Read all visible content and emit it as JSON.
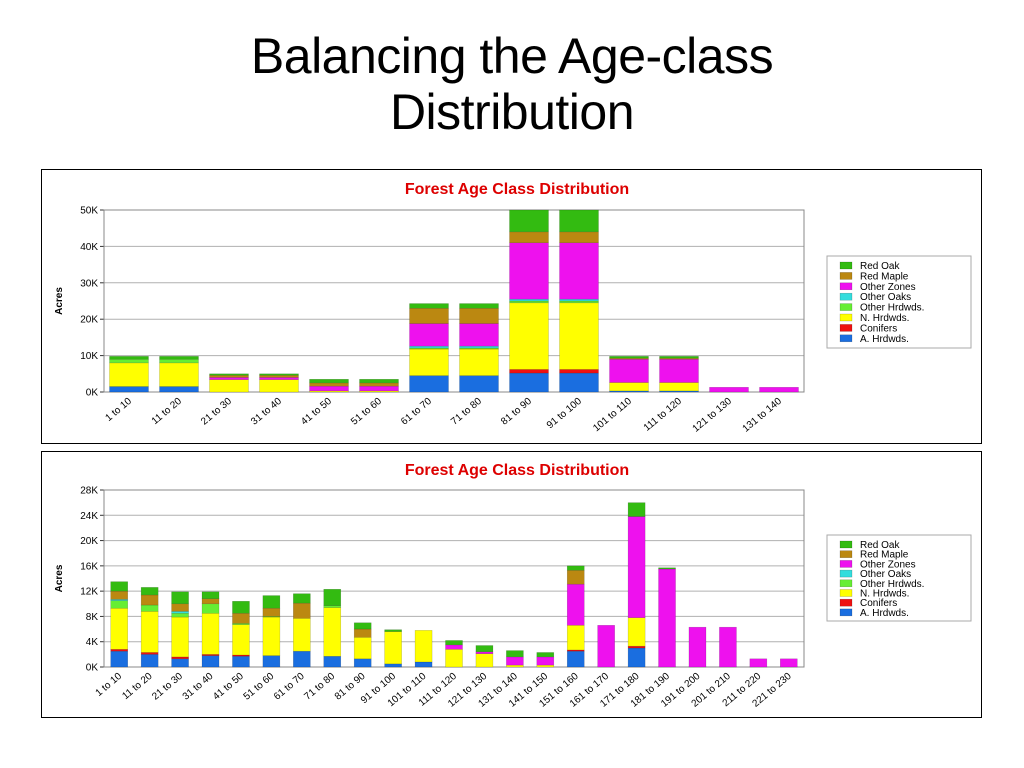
{
  "slide": {
    "title_line1": "Balancing the Age-class",
    "title_line2": "Distribution"
  },
  "colors": {
    "A. Hrdwds.": "#1a6ee0",
    "Conifers": "#ee1111",
    "N. Hrdwds.": "#ffff00",
    "Other Hrdwds.": "#66ee33",
    "Other Oaks": "#33dddd",
    "Other Zones": "#ee11ee",
    "Red Maple": "#bb8811",
    "Red Oak": "#33bb11",
    "title": "#dd0000"
  },
  "chart_data": [
    {
      "type": "bar",
      "stacked": true,
      "title": "Forest Age Class Distribution",
      "ylabel": "Acres",
      "ylim": [
        0,
        50000
      ],
      "yticks": [
        "0K",
        "10K",
        "20K",
        "30K",
        "40K",
        "50K"
      ],
      "grid": true,
      "legend_position": "right",
      "legend": [
        "Red Oak",
        "Red Maple",
        "Other Zones",
        "Other Oaks",
        "Other Hrdwds.",
        "N. Hrdwds.",
        "Conifers",
        "A. Hrdwds."
      ],
      "categories": [
        "1 to 10",
        "11 to 20",
        "21 to 30",
        "31 to 40",
        "41 to 50",
        "51 to 60",
        "61 to 70",
        "71 to 80",
        "81 to 90",
        "91 to 100",
        "101 to 110",
        "111 to 120",
        "121 to 130",
        "131 to 140"
      ],
      "series": [
        {
          "name": "A. Hrdwds.",
          "values": [
            1500,
            1500,
            0,
            0,
            0,
            0,
            4500,
            4500,
            5200,
            5200,
            300,
            300,
            0,
            0
          ]
        },
        {
          "name": "Conifers",
          "values": [
            0,
            0,
            0,
            0,
            0,
            0,
            0,
            0,
            1000,
            1000,
            0,
            0,
            0,
            0
          ]
        },
        {
          "name": "N. Hrdwds.",
          "values": [
            6500,
            6500,
            3400,
            3400,
            300,
            300,
            7300,
            7300,
            18300,
            18300,
            2300,
            2300,
            0,
            0
          ]
        },
        {
          "name": "Other Hrdwds.",
          "values": [
            1000,
            1000,
            0,
            0,
            0,
            0,
            300,
            300,
            500,
            500,
            0,
            0,
            0,
            0
          ]
        },
        {
          "name": "Other Oaks",
          "values": [
            0,
            0,
            0,
            0,
            0,
            0,
            500,
            500,
            500,
            500,
            0,
            0,
            0,
            0
          ]
        },
        {
          "name": "Other Zones",
          "values": [
            0,
            0,
            600,
            600,
            1300,
            1300,
            6200,
            6200,
            15500,
            15500,
            6400,
            6400,
            1300,
            1300
          ]
        },
        {
          "name": "Red Maple",
          "values": [
            0,
            0,
            600,
            600,
            900,
            900,
            4200,
            4200,
            3000,
            3000,
            300,
            300,
            0,
            0
          ]
        },
        {
          "name": "Red Oak",
          "values": [
            800,
            800,
            400,
            400,
            1000,
            1000,
            1300,
            1300,
            6000,
            6000,
            500,
            500,
            0,
            0
          ]
        }
      ]
    },
    {
      "type": "bar",
      "stacked": true,
      "title": "Forest Age Class Distribution",
      "ylabel": "Acres",
      "ylim": [
        0,
        28000
      ],
      "yticks": [
        "0K",
        "4K",
        "8K",
        "12K",
        "16K",
        "20K",
        "24K",
        "28K"
      ],
      "grid": true,
      "legend_position": "right",
      "legend": [
        "Red Oak",
        "Red Maple",
        "Other Zones",
        "Other Oaks",
        "Other Hrdwds.",
        "N. Hrdwds.",
        "Conifers",
        "A. Hrdwds."
      ],
      "categories": [
        "1 to 10",
        "11 to 20",
        "21 to 30",
        "31 to 40",
        "41 to 50",
        "51 to 60",
        "61 to 70",
        "71 to 80",
        "81 to 90",
        "91 to 100",
        "101 to 110",
        "111 to 120",
        "121 to 130",
        "131 to 140",
        "141 to 150",
        "151 to 160",
        "161 to 170",
        "171 to 180",
        "181 to 190",
        "191 to 200",
        "201 to 210",
        "211 to 220",
        "221 to 230"
      ],
      "series": [
        {
          "name": "A. Hrdwds.",
          "values": [
            2500,
            2000,
            1300,
            1800,
            1700,
            1800,
            2500,
            1700,
            1300,
            500,
            800,
            0,
            0,
            0,
            0,
            2500,
            0,
            3000,
            0,
            0,
            0,
            0,
            0
          ]
        },
        {
          "name": "Conifers",
          "values": [
            300,
            300,
            300,
            200,
            200,
            0,
            0,
            0,
            0,
            0,
            0,
            0,
            0,
            0,
            0,
            200,
            0,
            300,
            0,
            0,
            0,
            0,
            0
          ]
        },
        {
          "name": "N. Hrdwds.",
          "values": [
            6500,
            6500,
            6300,
            6500,
            4800,
            6100,
            5200,
            7700,
            3400,
            5100,
            5000,
            2800,
            2100,
            300,
            300,
            3900,
            0,
            4500,
            0,
            0,
            0,
            0,
            0
          ]
        },
        {
          "name": "Other Hrdwds.",
          "values": [
            1200,
            1000,
            600,
            1500,
            200,
            100,
            0,
            300,
            0,
            0,
            0,
            0,
            0,
            0,
            0,
            0,
            0,
            0,
            0,
            0,
            0,
            0,
            0
          ]
        },
        {
          "name": "Other Oaks",
          "values": [
            200,
            0,
            300,
            0,
            0,
            0,
            0,
            0,
            0,
            0,
            0,
            0,
            0,
            0,
            0,
            0,
            0,
            0,
            0,
            0,
            0,
            0,
            0
          ]
        },
        {
          "name": "Other Zones",
          "values": [
            0,
            0,
            0,
            0,
            0,
            0,
            0,
            0,
            0,
            0,
            0,
            700,
            300,
            1300,
            1300,
            6500,
            6600,
            16000,
            15500,
            6300,
            6300,
            1300,
            1300
          ]
        },
        {
          "name": "Red Maple",
          "values": [
            1300,
            1600,
            1200,
            800,
            1600,
            1300,
            2400,
            0,
            1300,
            0,
            0,
            0,
            0,
            0,
            0,
            2200,
            0,
            0,
            0,
            0,
            0,
            0,
            0
          ]
        },
        {
          "name": "Red Oak",
          "values": [
            1500,
            1200,
            1900,
            1100,
            1900,
            2000,
            1500,
            2600,
            1000,
            300,
            0,
            700,
            1000,
            1000,
            700,
            700,
            0,
            2200,
            200,
            0,
            0,
            0,
            0
          ]
        }
      ]
    }
  ]
}
